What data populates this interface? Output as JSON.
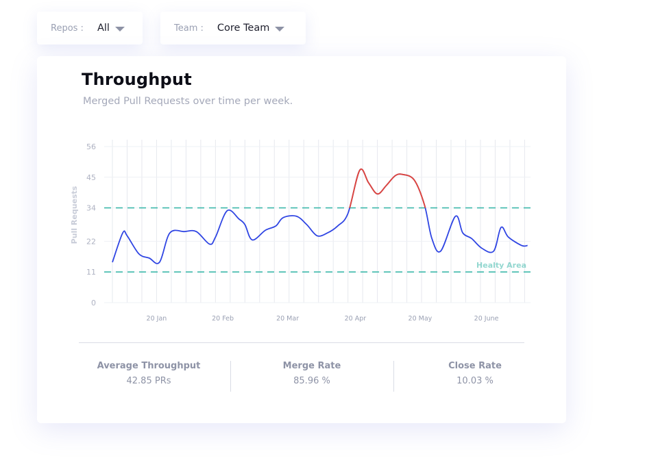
{
  "filters": {
    "repos": {
      "label": "Repos :",
      "value": "All"
    },
    "team": {
      "label": "Team :",
      "value": "Core Team"
    }
  },
  "card": {
    "title": "Throughput",
    "subtitle": "Merged Pull Requests over time per week."
  },
  "stats": [
    {
      "label": "Average Throughput",
      "value": "42.85 PRs"
    },
    {
      "label": "Merge Rate",
      "value": "85.96 %"
    },
    {
      "label": "Close Rate",
      "value": "10.03 %"
    }
  ],
  "chart_data": {
    "type": "line",
    "title": "Throughput",
    "subtitle": "Merged Pull Requests over time per week.",
    "ylabel": "Pull Requests",
    "xlabel": "",
    "ylim": [
      0,
      56
    ],
    "yticks": [
      0,
      11,
      22,
      34,
      45,
      56
    ],
    "xtick_labels": [
      {
        "label": "20 Jan",
        "week": 3
      },
      {
        "label": "20 Feb",
        "week": 7.5
      },
      {
        "label": "20 Mar",
        "week": 11.9
      },
      {
        "label": "20 Apr",
        "week": 16.5
      },
      {
        "label": "20 May",
        "week": 20.9
      },
      {
        "label": "20 June",
        "week": 25.4
      }
    ],
    "xrange": [
      0,
      28.4
    ],
    "grid": true,
    "reference_lines": [
      {
        "value": 34,
        "style": "dashed",
        "color": "#3cb8aa"
      },
      {
        "value": 11,
        "style": "dashed",
        "color": "#3cb8aa"
      }
    ],
    "band_label": "Healty Area",
    "colors": {
      "normal": "#2f45e3",
      "above": "#e0463c",
      "band": "#3cb8aa"
    },
    "series": [
      {
        "x": [
          0,
          0.7,
          1.0,
          1.8,
          2.5,
          3.2,
          3.9,
          4.9,
          5.7,
          6.6,
          7.0,
          7.8,
          8.6,
          9.0,
          9.5,
          10.4,
          11.1,
          11.6,
          12.5,
          13.2,
          13.9,
          14.6,
          15.3,
          16.0,
          16.8,
          17.4,
          18.0,
          18.6,
          19.2,
          19.7,
          20.5,
          21.2,
          21.7,
          22.3,
          23.3,
          23.8,
          24.4,
          25.1,
          25.9,
          26.4,
          26.9,
          27.8,
          28.2
        ],
        "y": [
          14.5,
          25,
          24,
          17.5,
          16,
          14.5,
          25,
          25.5,
          25.5,
          21,
          23.5,
          33,
          30,
          28,
          22.5,
          26,
          27.5,
          30.5,
          31,
          28,
          24,
          25,
          27.5,
          32,
          47.5,
          43,
          39,
          42,
          45.5,
          46,
          44,
          35,
          23,
          18.5,
          31,
          25,
          23,
          19.5,
          18.5,
          27,
          23.5,
          20.5,
          20.5
        ]
      }
    ]
  }
}
